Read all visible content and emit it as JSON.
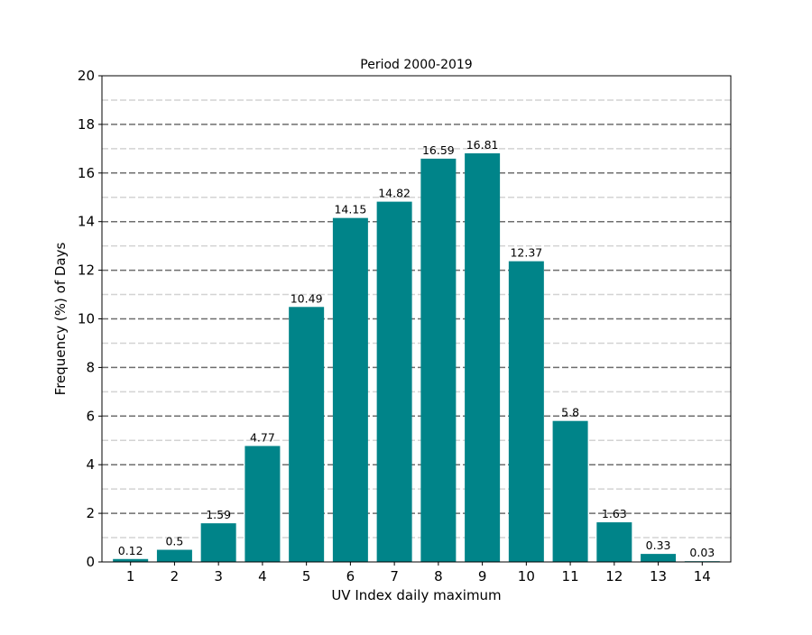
{
  "chart_data": {
    "type": "bar",
    "title": "Period 2000-2019",
    "xlabel": "UV Index daily maximum",
    "ylabel": "Frequency (%) of Days",
    "categories": [
      "1",
      "2",
      "3",
      "4",
      "5",
      "6",
      "7",
      "8",
      "9",
      "10",
      "11",
      "12",
      "13",
      "14"
    ],
    "values": [
      0.12,
      0.5,
      1.59,
      4.77,
      10.49,
      14.15,
      14.82,
      16.59,
      16.81,
      12.37,
      5.8,
      1.63,
      0.33,
      0.03
    ],
    "value_labels": [
      "0.12",
      "0.5",
      "1.59",
      "4.77",
      "10.49",
      "14.15",
      "14.82",
      "16.59",
      "16.81",
      "12.37",
      "5.8",
      "1.63",
      "0.33",
      "0.03"
    ],
    "ylim": [
      0,
      20
    ],
    "yticks": [
      "0",
      "2",
      "4",
      "6",
      "8",
      "10",
      "12",
      "14",
      "16",
      "18",
      "20"
    ],
    "grid": {
      "major": true,
      "minor": true
    },
    "colors": {
      "bar": "#008489",
      "major_grid": "#6e6e6e",
      "minor_grid": "#d3d3d3",
      "axis": "#000000"
    }
  }
}
